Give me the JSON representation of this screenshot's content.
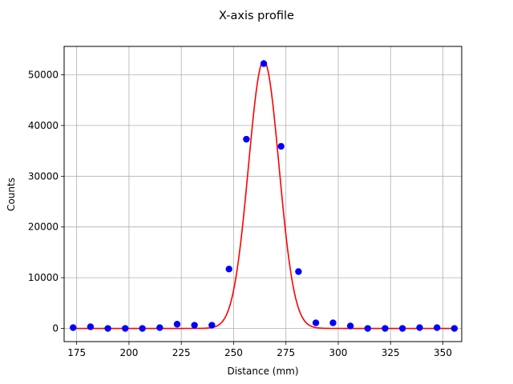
{
  "chart_data": {
    "type": "scatter",
    "title": "X-axis profile",
    "xlabel": "Distance (mm)",
    "ylabel": "Counts",
    "xlim": [
      169,
      359
    ],
    "ylim": [
      -2600,
      55600
    ],
    "xticks": [
      175,
      200,
      225,
      250,
      275,
      300,
      325,
      350
    ],
    "yticks": [
      0,
      10000,
      20000,
      30000,
      40000,
      50000
    ],
    "grid": true,
    "series": [
      {
        "kind": "scatter",
        "color": "#0000ff",
        "x": [
          173.3,
          181.6,
          189.9,
          198.2,
          206.4,
          214.7,
          223.0,
          231.3,
          239.6,
          247.8,
          256.1,
          264.4,
          272.7,
          281.0,
          289.3,
          297.5,
          305.8,
          314.1,
          322.4,
          330.7,
          338.9,
          347.2,
          355.5
        ],
        "y": [
          150,
          320,
          0,
          0,
          0,
          150,
          830,
          630,
          630,
          11700,
          37300,
          52200,
          35900,
          11200,
          1100,
          1100,
          480,
          0,
          0,
          0,
          150,
          150,
          0
        ]
      },
      {
        "kind": "line",
        "color": "#ff0000",
        "model": "gaussian",
        "amplitude": 52800,
        "mean": 264.4,
        "sigma": 7.3,
        "baseline": 0
      }
    ]
  }
}
